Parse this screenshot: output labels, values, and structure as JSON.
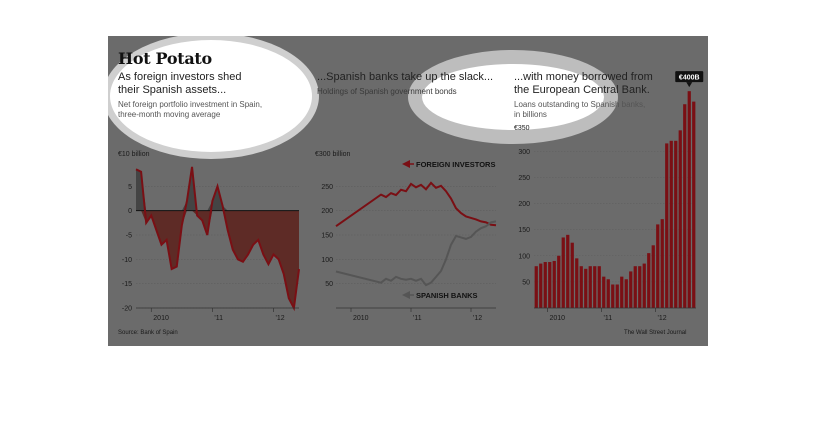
{
  "header": {
    "title": "Hot Potato",
    "source": "Source: Bank of Spain",
    "credit": "The Wall Street Journal"
  },
  "panels": [
    {
      "subtitle_line1": "As foreign investors shed",
      "subtitle_line2": "their Spanish assets...",
      "desc_line1": "Net foreign portfolio investment in Spain,",
      "desc_line2": "three-month moving average",
      "unit_label": "€10 billion"
    },
    {
      "subtitle_line1": "...Spanish banks take up the slack...",
      "desc_line1": "Holdings of Spanish government bonds",
      "unit_label": "€300 billion"
    },
    {
      "subtitle_line1": "...with money borrowed from",
      "subtitle_line2": "the European Central Bank.",
      "desc_line1": "Loans outstanding to Spanish banks,",
      "desc_line2": "in billions",
      "unit_label": "€350",
      "callout": "€400B"
    }
  ],
  "chart_data": [
    {
      "type": "area",
      "title": "As foreign investors shed their Spanish assets...",
      "ylabel": "€10 billion",
      "ylim": [
        -20,
        10
      ],
      "yticks": [
        "5",
        "0",
        "-5",
        "-10",
        "-15",
        "-20"
      ],
      "xticks": [
        "2010",
        "'11",
        "'12"
      ],
      "x": [
        "2009-10",
        "2009-11",
        "2009-12",
        "2010-01",
        "2010-02",
        "2010-03",
        "2010-04",
        "2010-05",
        "2010-06",
        "2010-07",
        "2010-08",
        "2010-09",
        "2010-10",
        "2010-11",
        "2010-12",
        "2011-01",
        "2011-02",
        "2011-03",
        "2011-04",
        "2011-05",
        "2011-06",
        "2011-07",
        "2011-08",
        "2011-09",
        "2011-10",
        "2011-11",
        "2011-12",
        "2012-01",
        "2012-02",
        "2012-03",
        "2012-04",
        "2012-05",
        "2012-06"
      ],
      "values": [
        8.5,
        8,
        -2.5,
        -1,
        -4,
        -7,
        -6,
        -12,
        -11.5,
        -3,
        2,
        9,
        -1,
        -2,
        -5,
        2,
        5,
        1,
        -4,
        -8,
        -10,
        -10.5,
        -9,
        -7,
        -6,
        -9,
        -11,
        -9,
        -10,
        -13,
        -18,
        -20,
        -12
      ],
      "colors": {
        "positive": "#444444",
        "negative": "#5e2b26",
        "line": "#7a0f14"
      }
    },
    {
      "type": "line",
      "title": "...Spanish banks take up the slack...",
      "ylabel": "€300 billion",
      "ylim": [
        0,
        300
      ],
      "yticks": [
        "250",
        "200",
        "150",
        "100",
        "50"
      ],
      "xticks": [
        "2010",
        "'11",
        "'12"
      ],
      "x": [
        "2009-10",
        "2010-07",
        "2010-08",
        "2010-09",
        "2010-10",
        "2010-11",
        "2010-12",
        "2011-01",
        "2011-02",
        "2011-03",
        "2011-04",
        "2011-05",
        "2011-06",
        "2011-07",
        "2011-08",
        "2011-09",
        "2011-10",
        "2011-11",
        "2011-12",
        "2012-01",
        "2012-02",
        "2012-03",
        "2012-04",
        "2012-05",
        "2012-06"
      ],
      "series": [
        {
          "name": "FOREIGN INVESTORS",
          "color": "#7a0f14",
          "values": [
            168,
            233,
            228,
            236,
            232,
            243,
            240,
            255,
            248,
            253,
            244,
            257,
            247,
            251,
            240,
            225,
            205,
            195,
            188,
            185,
            182,
            178,
            176,
            171,
            170
          ]
        },
        {
          "name": "SPANISH BANKS",
          "color": "#555555",
          "values": [
            75,
            52,
            60,
            56,
            64,
            60,
            58,
            60,
            56,
            60,
            47,
            52,
            64,
            76,
            100,
            130,
            148,
            145,
            142,
            146,
            157,
            164,
            168,
            176,
            178
          ]
        }
      ]
    },
    {
      "type": "bar",
      "title": "...with money borrowed from the European Central Bank.",
      "ylabel": "€350",
      "ylim": [
        0,
        400
      ],
      "yticks": [
        "300",
        "250",
        "200",
        "150",
        "100",
        "50"
      ],
      "xticks": [
        "2010",
        "'11",
        "'12"
      ],
      "callout": "€400B",
      "values": [
        80,
        85,
        88,
        88,
        90,
        100,
        135,
        140,
        125,
        95,
        80,
        75,
        80,
        80,
        80,
        60,
        55,
        45,
        45,
        60,
        55,
        70,
        80,
        80,
        85,
        105,
        120,
        160,
        170,
        315,
        320,
        320,
        340,
        390,
        415,
        395
      ],
      "color": "#7a0f14"
    }
  ]
}
